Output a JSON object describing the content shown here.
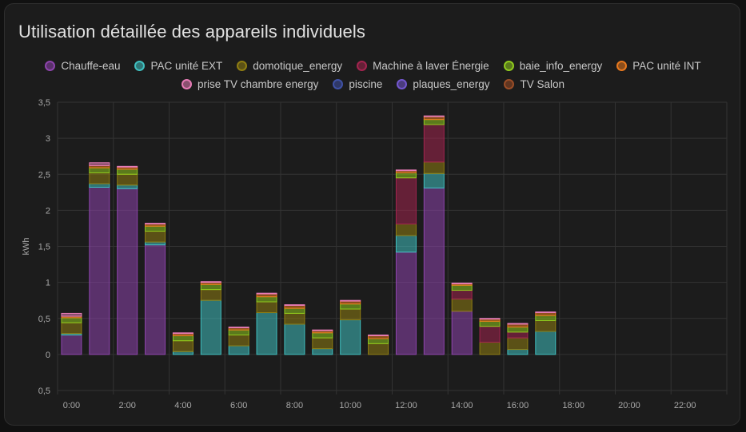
{
  "card": {
    "title": "Utilisation détaillée des appareils individuels"
  },
  "chart_data": {
    "type": "bar",
    "stacked": true,
    "title": "Utilisation détaillée des appareils individuels",
    "xlabel": "",
    "ylabel": "kWh",
    "ylim": [
      -0.5,
      3.5
    ],
    "y_ticks": [
      {
        "value": 3.5,
        "label": "3,5"
      },
      {
        "value": 3,
        "label": "3"
      },
      {
        "value": 2.5,
        "label": "2,5"
      },
      {
        "value": 2,
        "label": "2"
      },
      {
        "value": 1.5,
        "label": "1,5"
      },
      {
        "value": 1,
        "label": "1"
      },
      {
        "value": 0.5,
        "label": "0,5"
      },
      {
        "value": 0,
        "label": "0"
      },
      {
        "value": -0.5,
        "label": "0,5"
      }
    ],
    "grid": true,
    "legend_position": "top",
    "categories": [
      "0:00",
      "1:00",
      "2:00",
      "3:00",
      "4:00",
      "5:00",
      "6:00",
      "7:00",
      "8:00",
      "9:00",
      "10:00",
      "11:00",
      "12:00",
      "13:00",
      "14:00",
      "15:00",
      "16:00",
      "17:00",
      "18:00",
      "19:00",
      "20:00",
      "21:00",
      "22:00",
      "23:00"
    ],
    "x_tick_labels": [
      "0:00",
      "2:00",
      "4:00",
      "6:00",
      "8:00",
      "10:00",
      "12:00",
      "14:00",
      "16:00",
      "18:00",
      "20:00",
      "22:00"
    ],
    "series": [
      {
        "name": "Chauffe-eau",
        "color": "#8e44ad",
        "values": [
          0.27,
          2.32,
          2.3,
          1.52,
          0,
          0,
          0,
          0,
          0,
          0,
          0,
          0,
          1.42,
          2.31,
          0.6,
          0,
          0,
          0,
          0,
          0,
          0,
          0,
          0,
          0
        ]
      },
      {
        "name": "PAC unité EXT",
        "color": "#3fbfbf",
        "values": [
          0.02,
          0.05,
          0.05,
          0.04,
          0.04,
          0.75,
          0.12,
          0.58,
          0.42,
          0.08,
          0.48,
          0,
          0.23,
          0.2,
          0,
          0,
          0.07,
          0.32,
          0,
          0,
          0,
          0,
          0,
          0
        ]
      },
      {
        "name": "domotique_energy",
        "color": "#8f7d12",
        "values": [
          0.15,
          0.15,
          0.15,
          0.15,
          0.15,
          0.15,
          0.15,
          0.15,
          0.15,
          0.15,
          0.15,
          0.15,
          0.16,
          0.16,
          0.17,
          0.17,
          0.16,
          0.15,
          0,
          0,
          0,
          0,
          0,
          0
        ]
      },
      {
        "name": "Machine à laver Énergie",
        "color": "#a3244f",
        "values": [
          0,
          0,
          0,
          0,
          0,
          0,
          0,
          0,
          0,
          0,
          0,
          0,
          0.64,
          0.52,
          0.12,
          0.22,
          0.08,
          0,
          0,
          0,
          0,
          0,
          0,
          0
        ]
      },
      {
        "name": "baie_info_energy",
        "color": "#8fc91e",
        "values": [
          0.07,
          0.07,
          0.07,
          0.07,
          0.07,
          0.07,
          0.07,
          0.07,
          0.07,
          0.07,
          0.07,
          0.07,
          0.07,
          0.07,
          0.07,
          0.07,
          0.07,
          0.07,
          0,
          0,
          0,
          0,
          0,
          0
        ]
      },
      {
        "name": "PAC unité INT",
        "color": "#e8791e",
        "values": [
          0.02,
          0.03,
          0.03,
          0.03,
          0.03,
          0.03,
          0.03,
          0.04,
          0.04,
          0.03,
          0.04,
          0.04,
          0.03,
          0.04,
          0.02,
          0.03,
          0.04,
          0.04,
          0,
          0,
          0,
          0,
          0,
          0
        ]
      },
      {
        "name": "prise TV chambre energy",
        "color": "#e67bb5",
        "values": [
          0.04,
          0.04,
          0.01,
          0.01,
          0.01,
          0.01,
          0.01,
          0.01,
          0.01,
          0.01,
          0.01,
          0.01,
          0.01,
          0.01,
          0.01,
          0.01,
          0.01,
          0.01,
          0,
          0,
          0,
          0,
          0,
          0
        ]
      },
      {
        "name": "piscine",
        "color": "#3f51a5",
        "values": [
          0,
          0,
          0,
          0,
          0,
          0,
          0,
          0,
          0,
          0,
          0,
          0,
          0,
          0,
          0,
          0,
          0,
          0,
          0,
          0,
          0,
          0,
          0,
          0
        ]
      },
      {
        "name": "plaques_energy",
        "color": "#7357d0",
        "values": [
          0,
          0,
          0,
          0,
          0,
          0,
          0,
          0,
          0,
          0,
          0,
          0,
          0,
          0,
          0,
          0,
          0,
          0,
          0,
          0,
          0,
          0,
          0,
          0
        ]
      },
      {
        "name": "TV Salon",
        "color": "#9a4d27",
        "values": [
          0,
          0,
          0,
          0,
          0,
          0,
          0,
          0,
          0,
          0,
          0,
          0,
          0,
          0,
          0,
          0,
          0,
          0,
          0,
          0,
          0,
          0,
          0,
          0
        ]
      }
    ]
  }
}
